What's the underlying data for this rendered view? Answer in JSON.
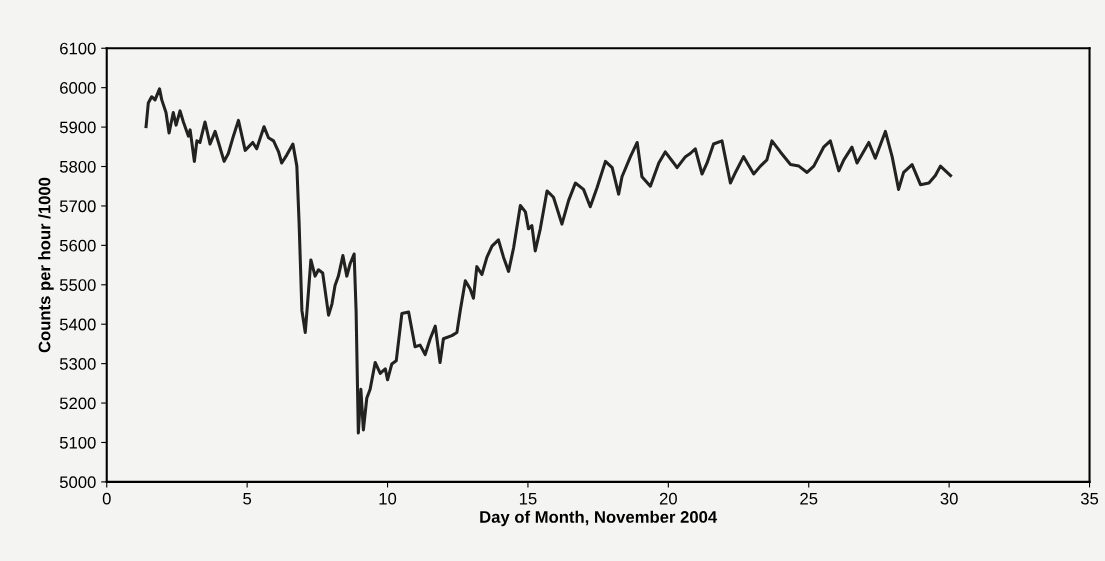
{
  "chart_data": {
    "type": "line",
    "xlabel": "Day of Month, November 2004",
    "ylabel": "Counts per hour /1000",
    "xlim": [
      0,
      35
    ],
    "xticks": [
      0,
      5,
      10,
      15,
      20,
      25,
      30,
      35
    ],
    "ylim": [
      5000,
      6100
    ],
    "yticks": [
      5000,
      5100,
      5200,
      5300,
      5400,
      5500,
      5600,
      5700,
      5800,
      5900,
      6000,
      6100
    ],
    "grid": false,
    "marker": "none",
    "line_style": "solid",
    "series": [
      {
        "color": "#222222",
        "x": [
          1.4,
          1.48,
          1.6,
          1.72,
          1.88,
          1.96,
          2.11,
          2.22,
          2.37,
          2.47,
          2.61,
          2.73,
          2.91,
          2.97,
          3.12,
          3.21,
          3.32,
          3.5,
          3.68,
          3.86,
          3.98,
          4.18,
          4.33,
          4.51,
          4.69,
          4.93,
          5.2,
          5.34,
          5.6,
          5.76,
          5.94,
          6.12,
          6.23,
          6.41,
          6.63,
          6.77,
          6.85,
          6.95,
          7.07,
          7.15,
          7.27,
          7.42,
          7.54,
          7.69,
          7.9,
          8.02,
          8.13,
          8.25,
          8.41,
          8.55,
          8.67,
          8.81,
          8.88,
          8.96,
          9.05,
          9.14,
          9.26,
          9.38,
          9.56,
          9.74,
          9.92,
          10.0,
          10.15,
          10.31,
          10.51,
          10.75,
          10.98,
          11.16,
          11.34,
          11.52,
          11.7,
          11.87,
          11.99,
          12.29,
          12.47,
          12.59,
          12.77,
          12.94,
          13.06,
          13.18,
          13.36,
          13.54,
          13.72,
          13.95,
          14.13,
          14.31,
          14.49,
          14.73,
          14.91,
          15.02,
          15.14,
          15.26,
          15.44,
          15.68,
          15.91,
          16.21,
          16.45,
          16.69,
          16.98,
          17.22,
          17.46,
          17.76,
          18.0,
          18.23,
          18.35,
          18.65,
          18.89,
          19.06,
          19.36,
          19.66,
          19.89,
          20.19,
          20.31,
          20.61,
          20.78,
          20.96,
          21.2,
          21.38,
          21.61,
          21.91,
          22.21,
          22.39,
          22.68,
          23.04,
          23.28,
          23.51,
          23.69,
          23.99,
          24.35,
          24.65,
          24.94,
          25.18,
          25.53,
          25.77,
          26.07,
          26.25,
          26.54,
          26.72,
          27.14,
          27.37,
          27.73,
          27.97,
          28.2,
          28.38,
          28.68,
          28.98,
          29.28,
          29.51,
          29.69,
          30.05
        ],
        "values": [
          5901,
          5961,
          5977,
          5969,
          5997,
          5969,
          5937,
          5885,
          5937,
          5905,
          5941,
          5913,
          5877,
          5893,
          5813,
          5865,
          5861,
          5913,
          5857,
          5889,
          5861,
          5813,
          5833,
          5877,
          5917,
          5841,
          5861,
          5845,
          5901,
          5873,
          5865,
          5837,
          5809,
          5829,
          5857,
          5801,
          5658,
          5435,
          5379,
          5451,
          5563,
          5522,
          5538,
          5530,
          5423,
          5451,
          5498,
          5522,
          5574,
          5522,
          5554,
          5578,
          5435,
          5124,
          5235,
          5132,
          5212,
          5235,
          5303,
          5275,
          5287,
          5259,
          5299,
          5307,
          5427,
          5431,
          5343,
          5347,
          5323,
          5363,
          5395,
          5303,
          5363,
          5371,
          5379,
          5435,
          5510,
          5490,
          5466,
          5546,
          5526,
          5570,
          5598,
          5614,
          5570,
          5534,
          5594,
          5701,
          5685,
          5642,
          5650,
          5586,
          5642,
          5738,
          5722,
          5654,
          5714,
          5758,
          5742,
          5698,
          5746,
          5813,
          5797,
          5730,
          5774,
          5825,
          5861,
          5774,
          5750,
          5809,
          5837,
          5809,
          5797,
          5825,
          5833,
          5845,
          5781,
          5809,
          5857,
          5865,
          5758,
          5785,
          5825,
          5781,
          5801,
          5817,
          5865,
          5837,
          5805,
          5801,
          5785,
          5801,
          5849,
          5865,
          5789,
          5817,
          5849,
          5809,
          5861,
          5821,
          5889,
          5825,
          5742,
          5785,
          5805,
          5754,
          5758,
          5777,
          5801,
          5777
        ]
      }
    ]
  }
}
